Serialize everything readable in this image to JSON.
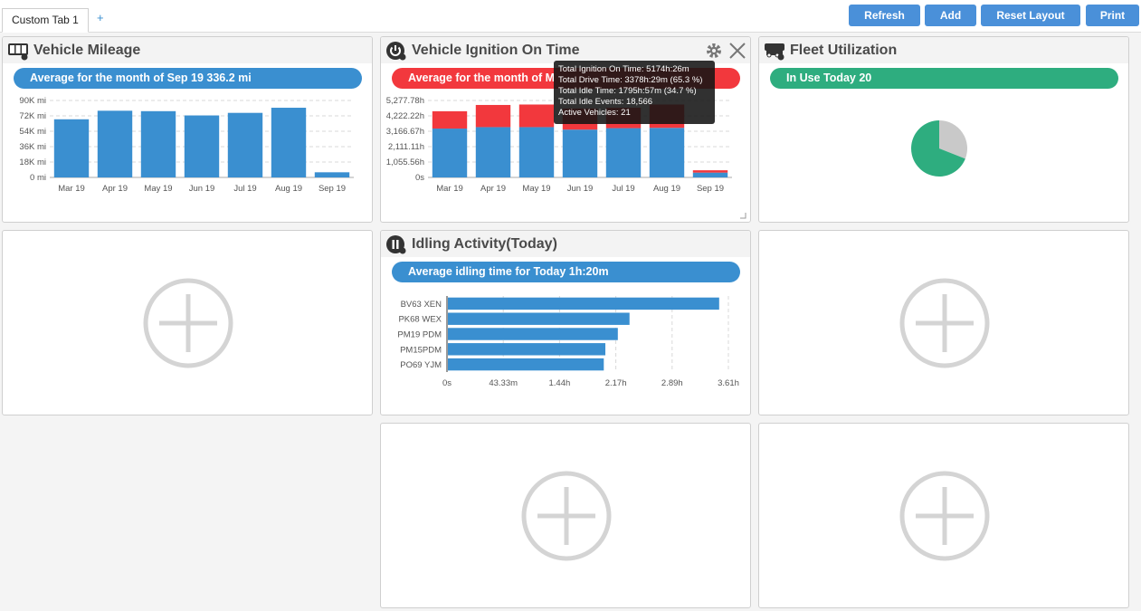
{
  "tabs": [
    {
      "label": "Custom Tab 1"
    }
  ],
  "add_tab_label": "+",
  "toolbar": {
    "refresh": "Refresh",
    "add": "Add",
    "reset_layout": "Reset Layout",
    "print": "Print"
  },
  "panels": {
    "mileage": {
      "title": "Vehicle Mileage",
      "banner": "Average for the month of  Sep 19  336.2 mi",
      "banner_color": "#3a8fd0"
    },
    "ignition": {
      "title": "Vehicle Ignition On Time",
      "banner": "Average for the month of  M",
      "banner_color": "#f2383d",
      "tooltip": [
        "Total Ignition On Time: 5174h:26m",
        "Total Drive Time: 3378h:29m (65.3 %)",
        "Total Idle Time: 1795h:57m (34.7 %)",
        "Total Idle Events: 18,566",
        "Active Vehicles: 21"
      ]
    },
    "fleet": {
      "title": "Fleet Utilization",
      "banner": "In Use Today  20",
      "banner_color": "#2ead7f"
    },
    "idling": {
      "title": "Idling Activity(Today)",
      "banner": "Average idling time for  Today  1h:20m",
      "banner_color": "#3a8fd0"
    }
  },
  "chart_data": [
    {
      "type": "bar",
      "title": "Vehicle Mileage",
      "categories": [
        "Mar 19",
        "Apr 19",
        "May 19",
        "Jun 19",
        "Jul 19",
        "Aug 19",
        "Sep 19"
      ],
      "values": [
        68000,
        78000,
        77500,
        72500,
        75500,
        81500,
        6000
      ],
      "y_ticks": [
        "0 mi",
        "18K mi",
        "36K mi",
        "54K mi",
        "72K mi",
        "90K mi"
      ],
      "ylim": [
        0,
        90000
      ],
      "color": "#3a8fd0"
    },
    {
      "type": "bar",
      "stacked": true,
      "title": "Vehicle Ignition On Time",
      "categories": [
        "Mar 19",
        "Apr 19",
        "May 19",
        "Jun 19",
        "Jul 19",
        "Aug 19",
        "Sep 19"
      ],
      "series": [
        {
          "values": [
            3350,
            3450,
            3450,
            3280,
            3380,
            3400,
            330
          ],
          "color": "#3a8fd0"
        },
        {
          "values": [
            1190,
            1520,
            1550,
            1450,
            1400,
            1600,
            160
          ],
          "color": "#f2383d"
        }
      ],
      "y_ticks": [
        "0s",
        "1,055.56h",
        "2,111.11h",
        "3,166.67h",
        "4,222.22h",
        "5,277.78h"
      ],
      "ylim": [
        0,
        5277.78
      ]
    },
    {
      "type": "pie",
      "title": "Fleet Utilization",
      "values": [
        0.69,
        0.31
      ],
      "colors": [
        "#2ead7f",
        "#c9c9c9"
      ]
    },
    {
      "type": "bar",
      "orientation": "horizontal",
      "title": "Idling Activity(Today)",
      "categories": [
        "BV63 XEN",
        "PK68 WEX",
        "PM19 PDM",
        "PM15PDM",
        "PO69 YJM"
      ],
      "values": [
        3.48,
        2.33,
        2.18,
        2.02,
        2.0
      ],
      "x_ticks": [
        "0s",
        "43.33m",
        "1.44h",
        "2.17h",
        "2.89h",
        "3.61h"
      ],
      "xlim": [
        0,
        3.61
      ],
      "color": "#3a8fd0"
    }
  ]
}
